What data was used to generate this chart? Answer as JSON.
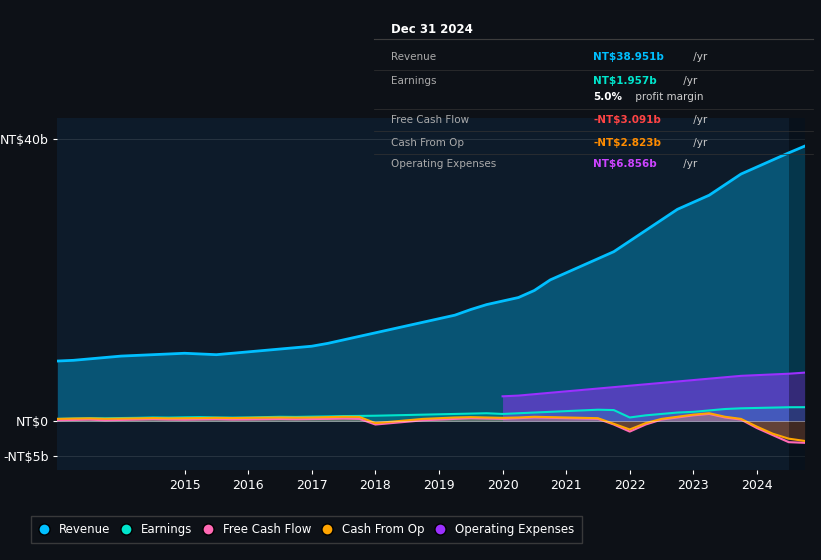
{
  "background_color": "#0d1117",
  "plot_bg_color": "#0d1b2a",
  "title_box": {
    "date": "Dec 31 2024",
    "rows": [
      {
        "label": "Revenue",
        "value": "NT$38.951b",
        "suffix": " /yr",
        "value_color": "#00bfff"
      },
      {
        "label": "Earnings",
        "value": "NT$1.957b",
        "suffix": " /yr",
        "value_color": "#00e5cc"
      },
      {
        "label": "",
        "value": "5.0%",
        "suffix": " profit margin",
        "value_color": "#ffffff"
      },
      {
        "label": "Free Cash Flow",
        "value": "-NT$3.091b",
        "suffix": " /yr",
        "value_color": "#ff4444"
      },
      {
        "label": "Cash From Op",
        "value": "-NT$2.823b",
        "suffix": " /yr",
        "value_color": "#ff8c00"
      },
      {
        "label": "Operating Expenses",
        "value": "NT$6.856b",
        "suffix": " /yr",
        "value_color": "#cc44ff"
      }
    ]
  },
  "x_years": [
    2013.0,
    2013.25,
    2013.5,
    2013.75,
    2014.0,
    2014.25,
    2014.5,
    2014.75,
    2015.0,
    2015.25,
    2015.5,
    2015.75,
    2016.0,
    2016.25,
    2016.5,
    2016.75,
    2017.0,
    2017.25,
    2017.5,
    2017.75,
    2018.0,
    2018.25,
    2018.5,
    2018.75,
    2019.0,
    2019.25,
    2019.5,
    2019.75,
    2020.0,
    2020.25,
    2020.5,
    2020.75,
    2021.0,
    2021.25,
    2021.5,
    2021.75,
    2022.0,
    2022.25,
    2022.5,
    2022.75,
    2023.0,
    2023.25,
    2023.5,
    2023.75,
    2024.0,
    2024.25,
    2024.5,
    2024.75
  ],
  "revenue": [
    8.5,
    8.6,
    8.8,
    9.0,
    9.2,
    9.3,
    9.4,
    9.5,
    9.6,
    9.5,
    9.4,
    9.6,
    9.8,
    10.0,
    10.2,
    10.4,
    10.6,
    11.0,
    11.5,
    12.0,
    12.5,
    13.0,
    13.5,
    14.0,
    14.5,
    15.0,
    15.8,
    16.5,
    17.0,
    17.5,
    18.5,
    20.0,
    21.0,
    22.0,
    23.0,
    24.0,
    25.5,
    27.0,
    28.5,
    30.0,
    31.0,
    32.0,
    33.5,
    35.0,
    36.0,
    37.0,
    38.0,
    38.951
  ],
  "earnings": [
    0.3,
    0.35,
    0.4,
    0.38,
    0.42,
    0.45,
    0.5,
    0.48,
    0.52,
    0.55,
    0.5,
    0.48,
    0.5,
    0.55,
    0.6,
    0.58,
    0.62,
    0.65,
    0.7,
    0.72,
    0.75,
    0.8,
    0.85,
    0.9,
    0.95,
    1.0,
    1.05,
    1.1,
    1.0,
    1.1,
    1.2,
    1.3,
    1.4,
    1.5,
    1.6,
    1.55,
    0.5,
    0.8,
    1.0,
    1.2,
    1.3,
    1.5,
    1.7,
    1.8,
    1.85,
    1.9,
    1.95,
    1.957
  ],
  "free_cash_flow": [
    0.1,
    0.15,
    0.2,
    0.1,
    0.15,
    0.2,
    0.25,
    0.2,
    0.18,
    0.22,
    0.25,
    0.2,
    0.22,
    0.25,
    0.28,
    0.25,
    0.28,
    0.3,
    0.35,
    0.3,
    -0.5,
    -0.3,
    -0.1,
    0.1,
    0.2,
    0.3,
    0.4,
    0.35,
    0.3,
    0.4,
    0.5,
    0.45,
    0.4,
    0.35,
    0.3,
    -0.5,
    -1.5,
    -0.5,
    0.2,
    0.5,
    0.8,
    1.0,
    0.5,
    0.2,
    -1.0,
    -2.0,
    -3.0,
    -3.091
  ],
  "cash_from_op": [
    0.3,
    0.35,
    0.38,
    0.32,
    0.35,
    0.38,
    0.42,
    0.38,
    0.4,
    0.42,
    0.45,
    0.42,
    0.45,
    0.48,
    0.5,
    0.48,
    0.5,
    0.55,
    0.6,
    0.58,
    -0.3,
    -0.1,
    0.1,
    0.3,
    0.4,
    0.5,
    0.55,
    0.5,
    0.45,
    0.5,
    0.6,
    0.55,
    0.5,
    0.45,
    0.4,
    -0.4,
    -1.2,
    -0.3,
    0.3,
    0.6,
    0.9,
    1.1,
    0.6,
    0.3,
    -0.8,
    -1.8,
    -2.5,
    -2.823
  ],
  "op_expenses": [
    null,
    null,
    null,
    null,
    null,
    null,
    null,
    null,
    null,
    null,
    null,
    null,
    null,
    null,
    null,
    null,
    null,
    null,
    null,
    null,
    null,
    null,
    null,
    null,
    null,
    null,
    null,
    null,
    3.5,
    3.6,
    3.8,
    4.0,
    4.2,
    4.4,
    4.6,
    4.8,
    5.0,
    5.2,
    5.4,
    5.6,
    5.8,
    6.0,
    6.2,
    6.4,
    6.5,
    6.6,
    6.7,
    6.856
  ],
  "colors": {
    "revenue": "#00bfff",
    "earnings": "#00e5cc",
    "free_cash_flow": "#ff69b4",
    "cash_from_op": "#ffa500",
    "op_expenses": "#9b30ff"
  },
  "ylim": [
    -7,
    43
  ],
  "yticks": [
    -5,
    0,
    40
  ],
  "ytick_labels": [
    "-NT$5b",
    "NT$0",
    "NT$40b"
  ],
  "xtick_years": [
    2015,
    2016,
    2017,
    2018,
    2019,
    2020,
    2021,
    2022,
    2023,
    2024
  ],
  "legend_labels": [
    "Revenue",
    "Earnings",
    "Free Cash Flow",
    "Cash From Op",
    "Operating Expenses"
  ],
  "legend_colors": [
    "#00bfff",
    "#00e5cc",
    "#ff69b4",
    "#ffa500",
    "#9b30ff"
  ]
}
